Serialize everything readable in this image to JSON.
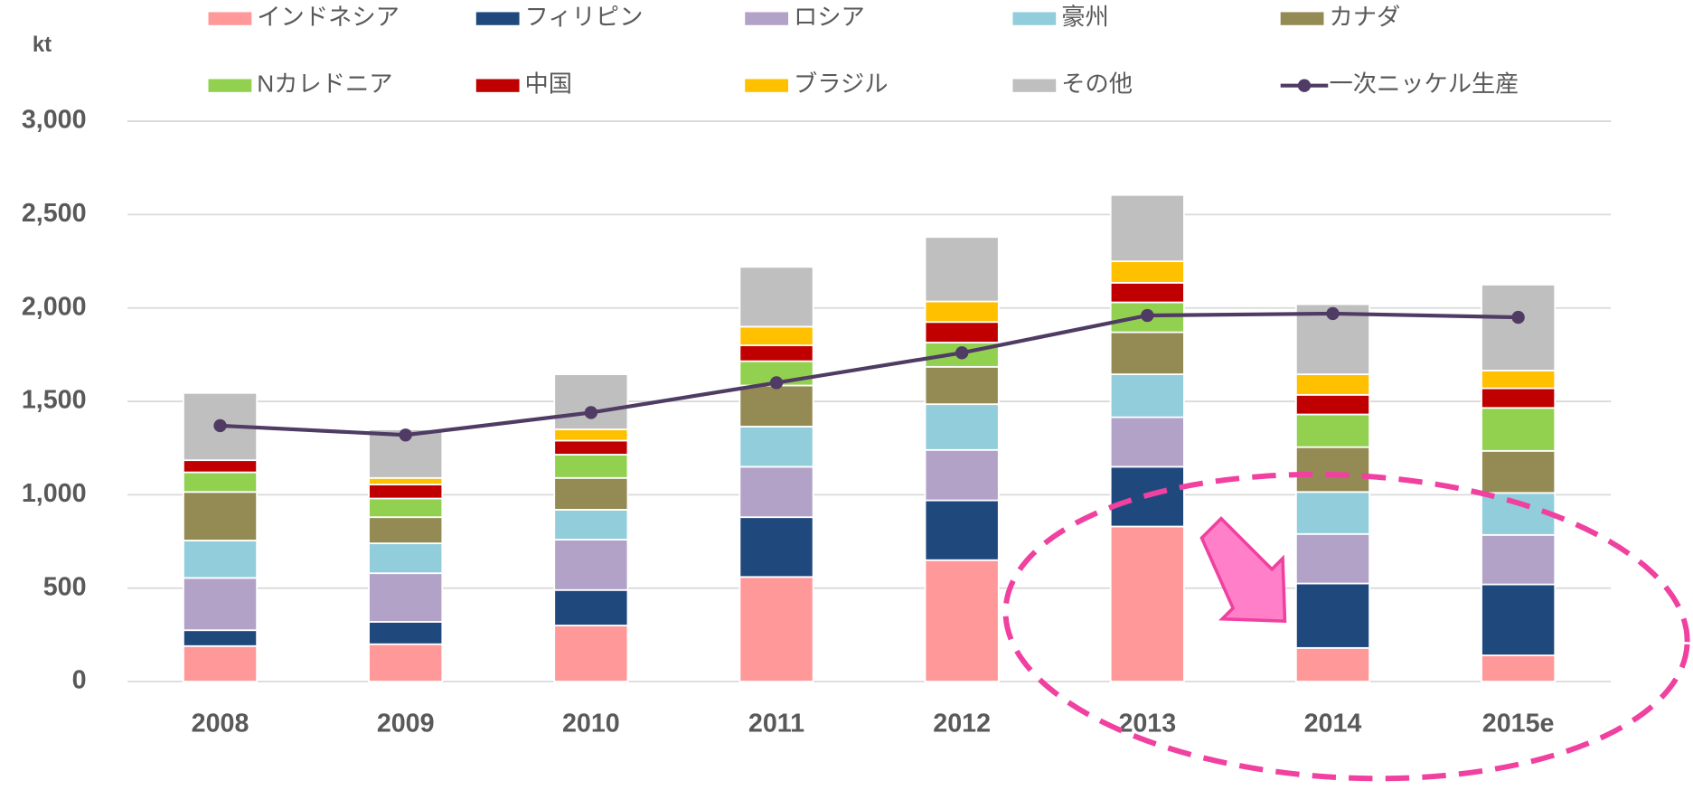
{
  "chart_data": {
    "type": "bar",
    "stacked": true,
    "ylabel": "kt",
    "categories": [
      "2008",
      "2009",
      "2010",
      "2011",
      "2012",
      "2013",
      "2014",
      "2015e"
    ],
    "series": [
      {
        "name": "インドネシア",
        "color": "#ff9999",
        "values": [
          190,
          200,
          300,
          560,
          650,
          830,
          180,
          140
        ]
      },
      {
        "name": "フィリピン",
        "color": "#1f497d",
        "values": [
          85,
          120,
          190,
          320,
          320,
          320,
          345,
          380
        ]
      },
      {
        "name": "ロシア",
        "color": "#b3a2c7",
        "values": [
          280,
          260,
          270,
          270,
          270,
          265,
          265,
          265
        ]
      },
      {
        "name": "豪州",
        "color": "#92cddc",
        "values": [
          200,
          160,
          160,
          215,
          245,
          230,
          225,
          225
        ]
      },
      {
        "name": "カナダ",
        "color": "#948a54",
        "values": [
          260,
          140,
          170,
          220,
          200,
          225,
          240,
          225
        ]
      },
      {
        "name": "Nカレドニア",
        "color": "#92d050",
        "values": [
          105,
          100,
          125,
          130,
          130,
          160,
          175,
          230
        ]
      },
      {
        "name": "中国",
        "color": "#c00000",
        "values": [
          65,
          75,
          75,
          85,
          110,
          105,
          105,
          105
        ]
      },
      {
        "name": "ブラジル",
        "color": "#ffc000",
        "values": [
          0,
          35,
          60,
          100,
          110,
          115,
          110,
          95
        ]
      },
      {
        "name": "その他",
        "color": "#bfbfbf",
        "values": [
          360,
          260,
          295,
          320,
          345,
          355,
          375,
          460
        ]
      },
      {
        "name": "一次ニッケル生産",
        "color": "#4f3b63",
        "type": "line",
        "values": [
          1370,
          1320,
          1440,
          1600,
          1760,
          1960,
          1970,
          1950
        ]
      }
    ],
    "ylim": [
      0,
      3000
    ],
    "yticks": [
      0,
      500,
      {
        "value": 1000,
        "label": "1,000"
      },
      {
        "value": 1500,
        "label": "1,500"
      },
      {
        "value": 2000,
        "label": "2,000"
      },
      {
        "value": 2500,
        "label": "2,500"
      },
      {
        "value": 3000,
        "label": "3,000"
      }
    ],
    "grid": true,
    "legend": "top"
  }
}
